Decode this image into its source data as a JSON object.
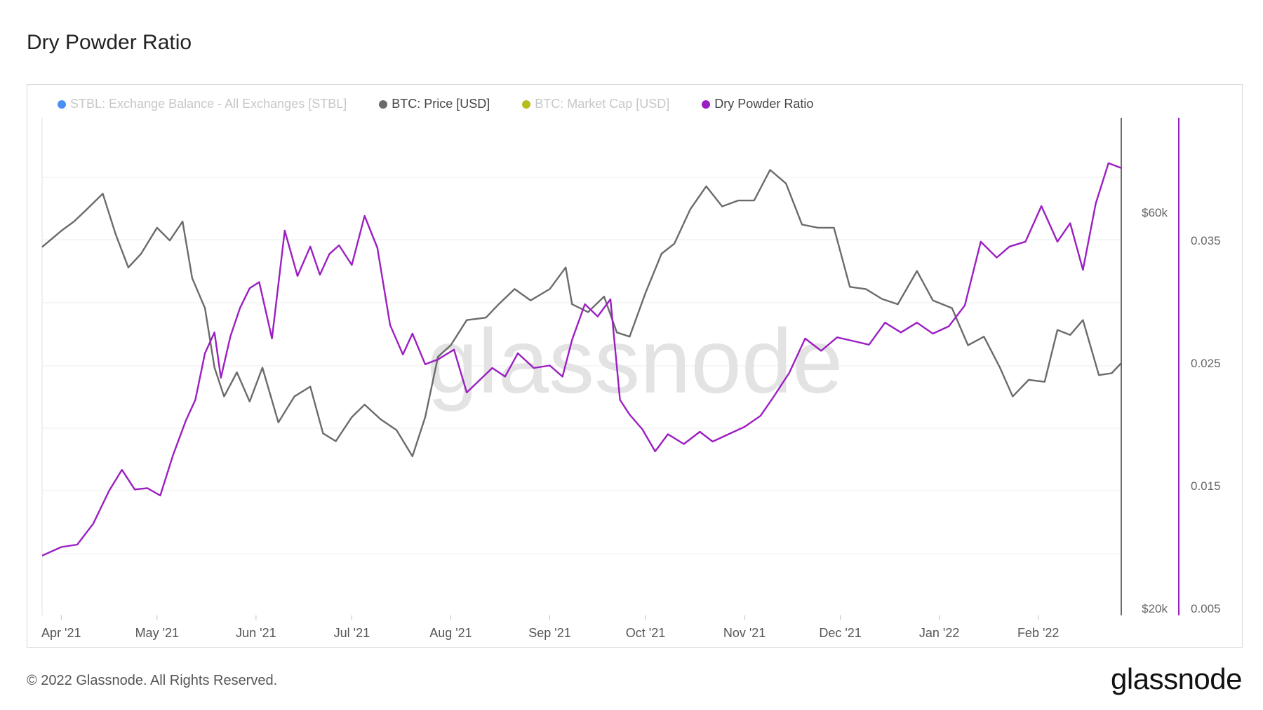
{
  "title": "Dry Powder Ratio",
  "footer": {
    "copyright": "© 2022 Glassnode. All Rights Reserved.",
    "logo": "glassnode"
  },
  "watermark": "glassnode",
  "colors": {
    "price": "#6b6b6b",
    "ratio": "#9b1fc1",
    "stbl": "#4a8ff5",
    "mcap": "#b5bd1d"
  },
  "legend": [
    {
      "label": "STBL: Exchange Balance - All Exchanges [STBL]",
      "color": "#4a8ff5",
      "muted": true
    },
    {
      "label": "BTC: Price [USD]",
      "color": "#6b6b6b",
      "muted": false
    },
    {
      "label": "BTC: Market Cap [USD]",
      "color": "#b5bd1d",
      "muted": true
    },
    {
      "label": "Dry Powder Ratio",
      "color": "#9b1fc1",
      "muted": false
    }
  ],
  "chart_data": {
    "type": "line",
    "x_ticks": [
      "Apr '21",
      "May '21",
      "Jun '21",
      "Jul '21",
      "Aug '21",
      "Sep '21",
      "Oct '21",
      "Nov '21",
      "Dec '21",
      "Jan '22",
      "Feb '22"
    ],
    "y_left": {
      "ticks": [
        "$20k",
        "$60k"
      ],
      "scale": "log"
    },
    "y_right": {
      "ticks": [
        "0.005",
        "0.015",
        "0.025",
        "0.035"
      ],
      "range": [
        0.005,
        0.045
      ]
    },
    "grid": true,
    "legend_position": "top",
    "series": [
      {
        "name": "BTC: Price [USD]",
        "axis": "left",
        "dates": [
          "2021-03-26",
          "2021-04-01",
          "2021-04-05",
          "2021-04-09",
          "2021-04-14",
          "2021-04-18",
          "2021-04-22",
          "2021-04-26",
          "2021-05-01",
          "2021-05-05",
          "2021-05-09",
          "2021-05-12",
          "2021-05-16",
          "2021-05-19",
          "2021-05-22",
          "2021-05-26",
          "2021-05-30",
          "2021-06-03",
          "2021-06-08",
          "2021-06-13",
          "2021-06-18",
          "2021-06-22",
          "2021-06-26",
          "2021-07-01",
          "2021-07-05",
          "2021-07-10",
          "2021-07-15",
          "2021-07-20",
          "2021-07-24",
          "2021-07-28",
          "2021-08-01",
          "2021-08-06",
          "2021-08-12",
          "2021-08-16",
          "2021-08-21",
          "2021-08-26",
          "2021-09-01",
          "2021-09-06",
          "2021-09-08",
          "2021-09-13",
          "2021-09-18",
          "2021-09-22",
          "2021-09-26",
          "2021-10-01",
          "2021-10-06",
          "2021-10-10",
          "2021-10-15",
          "2021-10-20",
          "2021-10-25",
          "2021-10-30",
          "2021-11-04",
          "2021-11-09",
          "2021-11-14",
          "2021-11-19",
          "2021-11-24",
          "2021-11-29",
          "2021-12-04",
          "2021-12-09",
          "2021-12-14",
          "2021-12-19",
          "2021-12-25",
          "2021-12-30",
          "2022-01-05",
          "2022-01-10",
          "2022-01-15",
          "2022-01-20",
          "2022-01-24",
          "2022-01-29",
          "2022-02-03",
          "2022-02-07",
          "2022-02-11",
          "2022-02-15",
          "2022-02-20",
          "2022-02-24",
          "2022-02-27"
        ],
        "values": [
          54500,
          57000,
          58500,
          60500,
          63200,
          56500,
          51500,
          53500,
          57500,
          55500,
          58500,
          50000,
          46000,
          39000,
          36000,
          38500,
          35500,
          39000,
          33500,
          36000,
          37000,
          32500,
          31800,
          34000,
          35200,
          33800,
          32800,
          30500,
          34000,
          40200,
          41500,
          44500,
          44800,
          46500,
          48500,
          47000,
          48500,
          51500,
          46500,
          45500,
          47500,
          43000,
          42500,
          48000,
          53500,
          55000,
          60500,
          64500,
          61000,
          62000,
          62000,
          67500,
          65000,
          58000,
          57500,
          57500,
          48800,
          48500,
          47200,
          46500,
          51000,
          47000,
          46000,
          41500,
          42500,
          39000,
          36000,
          37700,
          37500,
          43300,
          42700,
          44500,
          38200,
          38400,
          39500
        ]
      },
      {
        "name": "Dry Powder Ratio",
        "axis": "right",
        "dates": [
          "2021-03-26",
          "2021-04-01",
          "2021-04-06",
          "2021-04-11",
          "2021-04-16",
          "2021-04-20",
          "2021-04-24",
          "2021-04-28",
          "2021-05-02",
          "2021-05-06",
          "2021-05-10",
          "2021-05-13",
          "2021-05-16",
          "2021-05-19",
          "2021-05-21",
          "2021-05-24",
          "2021-05-27",
          "2021-05-30",
          "2021-06-02",
          "2021-06-06",
          "2021-06-10",
          "2021-06-14",
          "2021-06-18",
          "2021-06-21",
          "2021-06-24",
          "2021-06-27",
          "2021-07-01",
          "2021-07-05",
          "2021-07-09",
          "2021-07-13",
          "2021-07-17",
          "2021-07-20",
          "2021-07-24",
          "2021-07-28",
          "2021-08-02",
          "2021-08-06",
          "2021-08-10",
          "2021-08-14",
          "2021-08-18",
          "2021-08-22",
          "2021-08-27",
          "2021-09-01",
          "2021-09-05",
          "2021-09-08",
          "2021-09-12",
          "2021-09-16",
          "2021-09-20",
          "2021-09-23",
          "2021-09-26",
          "2021-09-30",
          "2021-10-04",
          "2021-10-08",
          "2021-10-13",
          "2021-10-18",
          "2021-10-22",
          "2021-10-27",
          "2021-11-01",
          "2021-11-06",
          "2021-11-10",
          "2021-11-15",
          "2021-11-20",
          "2021-11-25",
          "2021-11-30",
          "2021-12-05",
          "2021-12-10",
          "2021-12-15",
          "2021-12-20",
          "2021-12-25",
          "2021-12-30",
          "2022-01-04",
          "2022-01-09",
          "2022-01-14",
          "2022-01-19",
          "2022-01-23",
          "2022-01-28",
          "2022-02-02",
          "2022-02-07",
          "2022-02-11",
          "2022-02-15",
          "2022-02-19",
          "2022-02-23",
          "2022-02-27"
        ],
        "values": [
          0.0093,
          0.01,
          0.0102,
          0.0119,
          0.0146,
          0.0163,
          0.0147,
          0.0148,
          0.0142,
          0.0175,
          0.0203,
          0.022,
          0.0258,
          0.0275,
          0.0238,
          0.0272,
          0.0295,
          0.0311,
          0.0316,
          0.027,
          0.0358,
          0.0321,
          0.0345,
          0.0322,
          0.0339,
          0.0346,
          0.033,
          0.037,
          0.0344,
          0.0281,
          0.0257,
          0.0274,
          0.0249,
          0.0253,
          0.0261,
          0.0226,
          0.0236,
          0.0246,
          0.0239,
          0.0258,
          0.0246,
          0.0248,
          0.0239,
          0.0269,
          0.0298,
          0.0288,
          0.0302,
          0.022,
          0.0208,
          0.0196,
          0.0178,
          0.0192,
          0.0184,
          0.0194,
          0.0186,
          0.0192,
          0.0198,
          0.0207,
          0.0222,
          0.0242,
          0.027,
          0.026,
          0.0271,
          0.0268,
          0.0265,
          0.0283,
          0.0275,
          0.0283,
          0.0274,
          0.028,
          0.0297,
          0.0349,
          0.0336,
          0.0345,
          0.0349,
          0.0378,
          0.0349,
          0.0364,
          0.0326,
          0.038,
          0.0413,
          0.0409
        ]
      }
    ]
  }
}
